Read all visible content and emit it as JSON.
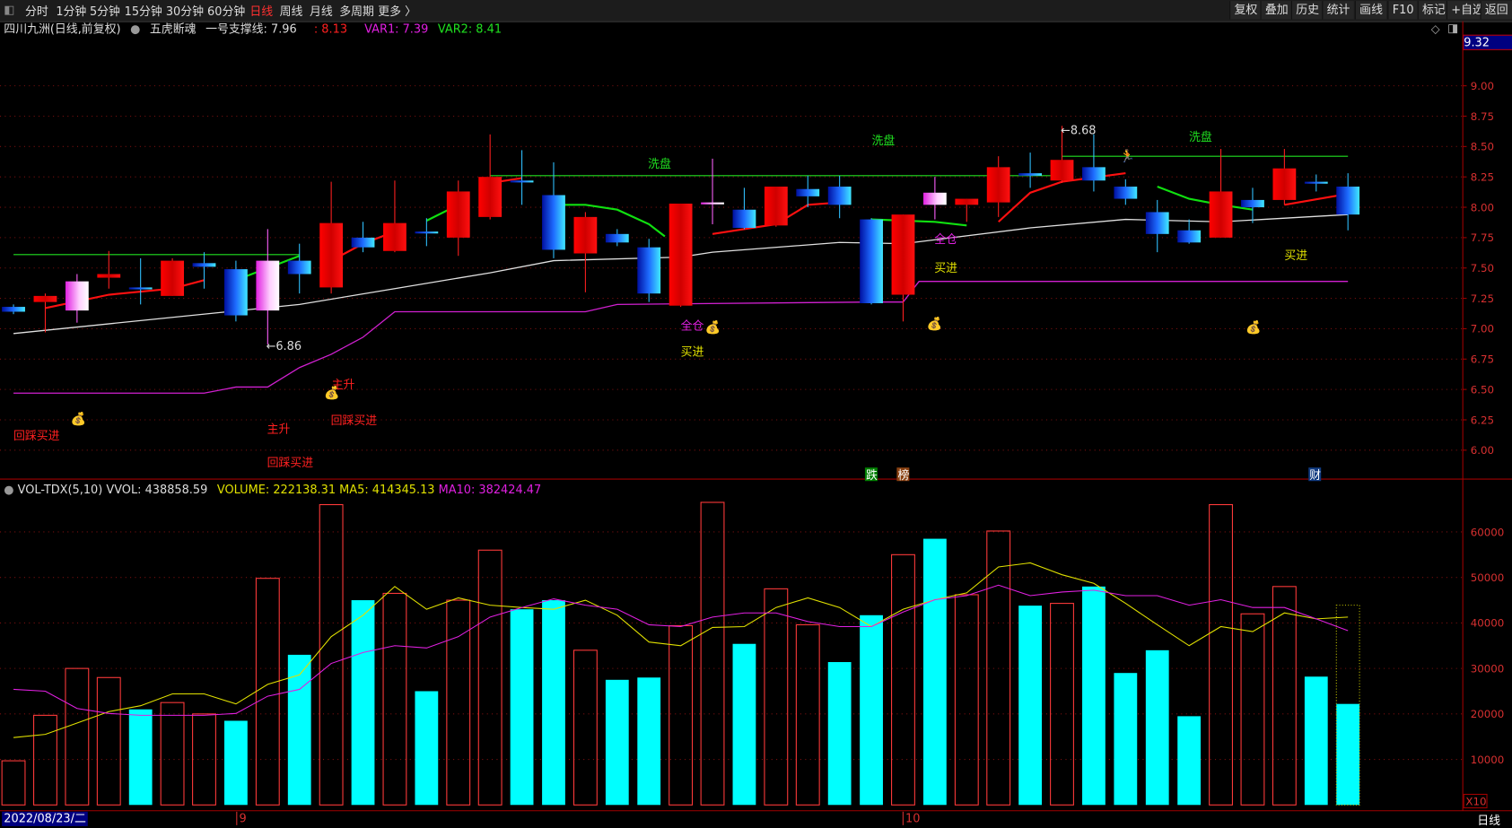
{
  "toolbar": {
    "periods": [
      "分时",
      "1分钟",
      "5分钟",
      "15分钟",
      "30分钟",
      "60分钟",
      "日线",
      "周线",
      "月线",
      "多周期",
      "更多 〉"
    ],
    "active_period": "日线",
    "right_buttons": [
      "复权",
      "叠加",
      "历史",
      "统计",
      "画线",
      "F10",
      "标记",
      "+自选",
      "返回"
    ]
  },
  "info": {
    "stock": "四川九洲(日线,前复权)",
    "indicator": "五虎断魂",
    "support_label": "一号支撑线: 7.96",
    "value2": ": 8.13",
    "var1": "VAR1: 7.39",
    "var2": "VAR2: 8.41"
  },
  "price_axis": {
    "current": "9.32",
    "ticks": [
      "9.00",
      "8.75",
      "8.50",
      "8.25",
      "8.00",
      "7.75",
      "7.50",
      "7.25",
      "7.00",
      "6.75",
      "6.50",
      "6.25",
      "6.00"
    ]
  },
  "volume_info": {
    "name": "VOL-TDX(5,10)",
    "vvol": "VVOL: 438858.59",
    "volume": "VOLUME: 222138.31",
    "ma5": "MA5: 414345.13",
    "ma10": "MA10: 382424.47"
  },
  "volume_axis": {
    "ticks": [
      "60000",
      "50000",
      "40000",
      "30000",
      "20000",
      "10000"
    ],
    "unit": "X10"
  },
  "date_axis": {
    "current": "2022/08/23/二",
    "months": [
      "9",
      "10"
    ],
    "period": "日线"
  },
  "annotations": {
    "wash": "洗盘",
    "buy": "买进",
    "main_up": "主升",
    "pullback_buy": "回踩买进",
    "full_pos": "全仓",
    "low_mark": "←6.86",
    "high_mark": "←8.68",
    "badge_fall": "跌",
    "badge_rank": "榜",
    "badge_fin": "财"
  },
  "colors": {
    "up": "#ff2020",
    "down_body": "#1e6cff",
    "ma_white": "#e0e0e0",
    "ma5": "#e0e000",
    "ma10": "#e020e0",
    "vol_down": "#00ffff",
    "grid": "#7a1010"
  },
  "chart_data": {
    "type": "candlestick",
    "price_range": [
      5.8,
      9.32
    ],
    "candles": [
      [
        7.18,
        7.2,
        7.12,
        7.14,
        "blue"
      ],
      [
        7.22,
        7.29,
        6.97,
        7.27,
        "red"
      ],
      [
        7.15,
        7.45,
        7.05,
        7.39,
        "pink"
      ],
      [
        7.42,
        7.64,
        7.33,
        7.45,
        "red"
      ],
      [
        7.34,
        7.58,
        7.2,
        7.33,
        "blue"
      ],
      [
        7.27,
        7.58,
        7.27,
        7.56,
        "red"
      ],
      [
        7.54,
        7.63,
        7.33,
        7.51,
        "blue"
      ],
      [
        7.49,
        7.56,
        7.06,
        7.11,
        "blue"
      ],
      [
        7.15,
        7.82,
        6.87,
        7.56,
        "pink"
      ],
      [
        7.56,
        7.7,
        7.29,
        7.45,
        "blue"
      ],
      [
        7.34,
        8.21,
        7.29,
        7.87,
        "red"
      ],
      [
        7.75,
        7.88,
        7.63,
        7.67,
        "blue"
      ],
      [
        7.64,
        8.22,
        7.63,
        7.87,
        "red"
      ],
      [
        7.8,
        7.91,
        7.68,
        7.79,
        "blue"
      ],
      [
        7.75,
        8.22,
        7.6,
        8.13,
        "red"
      ],
      [
        7.92,
        8.6,
        7.9,
        8.25,
        "red"
      ],
      [
        8.22,
        8.47,
        8.02,
        8.21,
        "blue"
      ],
      [
        8.1,
        8.37,
        7.58,
        7.65,
        "blue"
      ],
      [
        7.62,
        7.96,
        7.3,
        7.92,
        "red"
      ],
      [
        7.78,
        7.82,
        7.68,
        7.71,
        "blue"
      ],
      [
        7.67,
        7.74,
        7.22,
        7.29,
        "blue"
      ],
      [
        7.19,
        8.03,
        7.18,
        8.03,
        "red"
      ],
      [
        8.04,
        8.4,
        7.86,
        8.03,
        "pink"
      ],
      [
        7.98,
        8.16,
        7.82,
        7.83,
        "blue"
      ],
      [
        7.85,
        8.17,
        7.84,
        8.17,
        "red"
      ],
      [
        8.15,
        8.26,
        8.0,
        8.09,
        "blue"
      ],
      [
        8.17,
        8.26,
        7.91,
        8.02,
        "blue"
      ],
      [
        7.9,
        7.91,
        7.2,
        7.21,
        "blue"
      ],
      [
        7.28,
        7.94,
        7.06,
        7.94,
        "red"
      ],
      [
        8.12,
        8.25,
        7.9,
        8.02,
        "pink"
      ],
      [
        8.02,
        8.07,
        7.88,
        8.07,
        "red"
      ],
      [
        8.04,
        8.42,
        7.92,
        8.33,
        "red"
      ],
      [
        8.28,
        8.45,
        8.16,
        8.26,
        "blue"
      ],
      [
        8.22,
        8.67,
        8.2,
        8.39,
        "red"
      ],
      [
        8.33,
        8.6,
        8.13,
        8.22,
        "blue"
      ],
      [
        8.17,
        8.23,
        8.02,
        8.07,
        "blue"
      ],
      [
        7.96,
        8.06,
        7.63,
        7.78,
        "blue"
      ],
      [
        7.81,
        7.9,
        7.7,
        7.71,
        "blue"
      ],
      [
        7.75,
        8.48,
        7.75,
        8.13,
        "red"
      ],
      [
        8.06,
        8.16,
        7.87,
        8.0,
        "blue"
      ],
      [
        8.06,
        8.48,
        8.02,
        8.32,
        "red"
      ],
      [
        8.21,
        8.27,
        8.13,
        8.2,
        "blue"
      ],
      [
        8.17,
        8.28,
        7.81,
        7.94,
        "blue"
      ]
    ],
    "white_line": [
      [
        0,
        6.96
      ],
      [
        9,
        7.2
      ],
      [
        12,
        7.33
      ],
      [
        15,
        7.46
      ],
      [
        17,
        7.56
      ],
      [
        21,
        7.59
      ],
      [
        22,
        7.63
      ],
      [
        26,
        7.71
      ],
      [
        28,
        7.7
      ],
      [
        32,
        7.83
      ],
      [
        35,
        7.9
      ],
      [
        38,
        7.88
      ],
      [
        42,
        7.94
      ]
    ],
    "trend_segments": [
      {
        "color": "red",
        "points": [
          [
            1,
            7.17
          ],
          [
            3,
            7.28
          ],
          [
            5,
            7.33
          ],
          [
            6,
            7.4
          ]
        ]
      },
      {
        "color": "green",
        "points": [
          [
            7,
            7.4
          ],
          [
            9,
            7.6
          ]
        ]
      },
      {
        "color": "red",
        "points": [
          [
            10,
            7.56
          ],
          [
            11,
            7.7
          ],
          [
            12,
            7.8
          ]
        ]
      },
      {
        "color": "green",
        "points": [
          [
            13,
            7.89
          ],
          [
            14,
            8.02
          ]
        ]
      },
      {
        "color": "red",
        "points": [
          [
            15,
            8.2
          ],
          [
            16,
            8.24
          ]
        ]
      },
      {
        "color": "green",
        "points": [
          [
            17,
            8.02
          ],
          [
            18,
            8.02
          ],
          [
            19,
            7.98
          ],
          [
            20,
            7.86
          ],
          [
            20.5,
            7.76
          ]
        ]
      },
      {
        "color": "red",
        "points": [
          [
            22,
            7.78
          ],
          [
            24,
            7.86
          ],
          [
            25,
            8.02
          ],
          [
            26,
            8.04
          ]
        ]
      },
      {
        "color": "green",
        "points": [
          [
            27,
            7.9
          ],
          [
            29,
            7.88
          ],
          [
            30,
            7.85
          ]
        ]
      },
      {
        "color": "red",
        "points": [
          [
            31,
            7.88
          ],
          [
            32,
            8.12
          ],
          [
            33,
            8.21
          ],
          [
            35,
            8.28
          ]
        ]
      },
      {
        "color": "green",
        "points": [
          [
            36,
            8.17
          ],
          [
            37,
            8.07
          ],
          [
            38,
            8.02
          ],
          [
            39,
            7.98
          ]
        ]
      },
      {
        "color": "red",
        "points": [
          [
            40,
            8.02
          ],
          [
            42,
            8.11
          ]
        ]
      }
    ],
    "purple_line": [
      [
        0,
        6.47
      ],
      [
        6,
        6.47
      ],
      [
        7,
        6.52
      ],
      [
        8,
        6.52
      ],
      [
        9,
        6.68
      ],
      [
        10,
        6.79
      ],
      [
        11,
        6.93
      ],
      [
        12,
        7.14
      ],
      [
        18,
        7.14
      ],
      [
        19,
        7.2
      ],
      [
        27,
        7.22
      ],
      [
        28,
        7.22
      ],
      [
        28.5,
        7.39
      ],
      [
        42,
        7.39
      ]
    ],
    "support_lines": [
      {
        "from": 0,
        "to": 9,
        "value": 7.61
      },
      {
        "from": 15,
        "to": 33,
        "value": 8.26
      },
      {
        "from": 33,
        "to": 42,
        "value": 8.42
      }
    ],
    "volume": [
      9700,
      19700,
      30000,
      28000,
      21000,
      22500,
      20000,
      18500,
      49800,
      33000,
      66000,
      45000,
      46500,
      25000,
      45000,
      56000,
      43000,
      45000,
      34000,
      27500,
      28000,
      39400,
      66500,
      35400,
      47500,
      39600,
      31400,
      41700,
      55000,
      58500,
      46200,
      60200,
      43800,
      44300,
      48000,
      29000,
      34000,
      19500,
      66000,
      42000,
      48000,
      28200,
      22200
    ],
    "volume_up": [
      1,
      1,
      1,
      1,
      0,
      1,
      1,
      0,
      1,
      0,
      1,
      0,
      1,
      0,
      1,
      1,
      0,
      0,
      1,
      0,
      0,
      1,
      1,
      0,
      1,
      1,
      0,
      0,
      1,
      0,
      1,
      1,
      0,
      1,
      0,
      0,
      0,
      0,
      1,
      1,
      1,
      0,
      0
    ],
    "volume_forecast_last": 43900,
    "ma5": [
      14800,
      15500,
      18000,
      20500,
      21800,
      24400,
      24400,
      22200,
      26500,
      28600,
      37000,
      41700,
      48000,
      43000,
      45500,
      43900,
      43400,
      43000,
      45000,
      41700,
      35800,
      35000,
      39000,
      39200,
      43400,
      45500,
      43400,
      39200,
      43000,
      45100,
      46600,
      52300,
      53200,
      50600,
      48700,
      44300,
      39600,
      35000,
      39200,
      38100,
      42200,
      40900,
      41300
    ],
    "ma10": [
      25400,
      25000,
      21200,
      20100,
      19700,
      19700,
      19700,
      20100,
      23900,
      25400,
      31100,
      33500,
      35000,
      34500,
      37000,
      41300,
      43400,
      45300,
      43900,
      43000,
      39600,
      39200,
      41300,
      42200,
      42200,
      40300,
      39200,
      39200,
      42400,
      45100,
      46000,
      48300,
      46000,
      46800,
      47200,
      46000,
      46000,
      43900,
      45100,
      43400,
      43400,
      40900,
      38300
    ],
    "volume_range": [
      0,
      70000
    ]
  }
}
